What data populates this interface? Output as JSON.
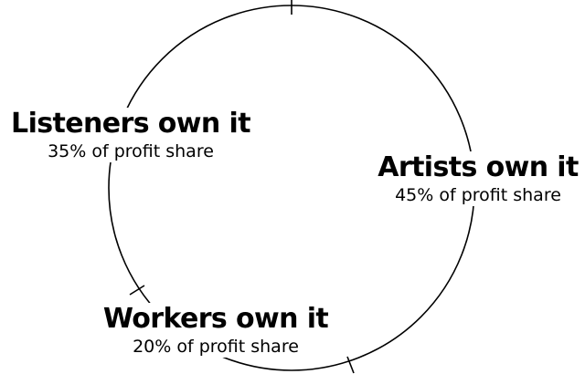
{
  "segments": [
    {
      "id": "listeners",
      "title": "Listeners own it",
      "subtitle": "35% of profit share",
      "share": 35
    },
    {
      "id": "artists",
      "title": "Artists own it",
      "subtitle": "45% of profit share",
      "share": 45
    },
    {
      "id": "workers",
      "title": "Workers own it",
      "subtitle": "20% of profit share",
      "share": 20
    }
  ],
  "colors": {
    "stroke": "#000000",
    "background": "#ffffff"
  }
}
